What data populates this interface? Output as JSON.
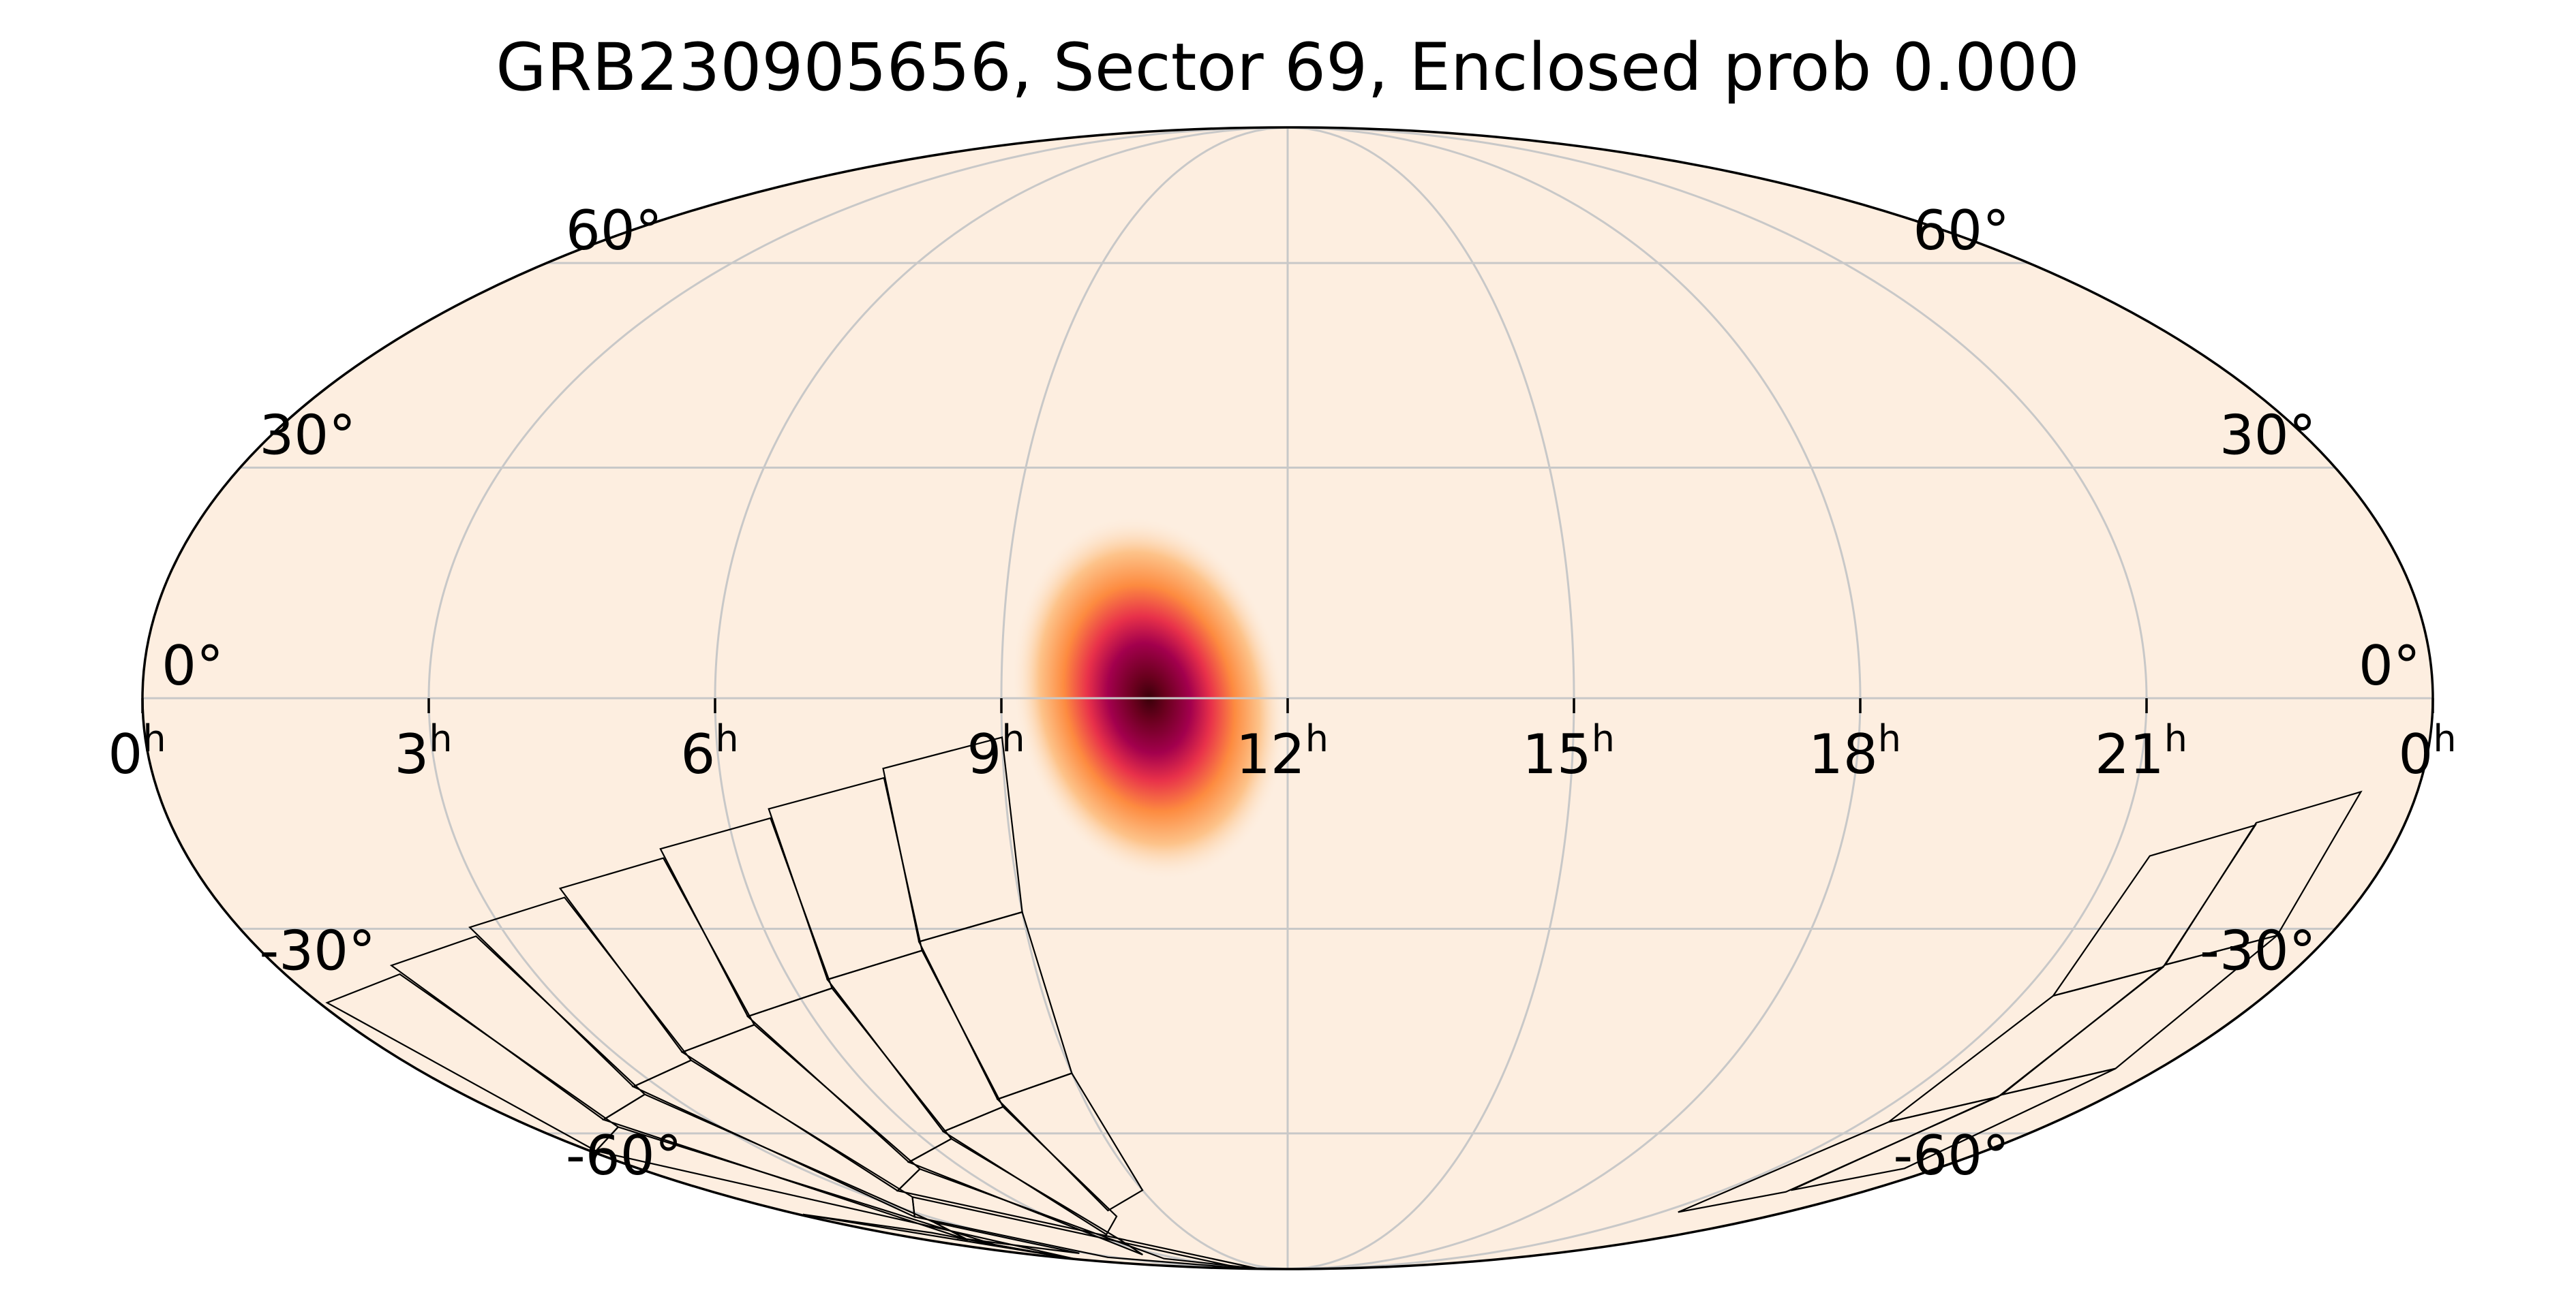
{
  "chart_data": {
    "type": "heatmap",
    "projection": "mollweide",
    "title": "GRB230905656, Sector 69, Enclosed prob 0.000",
    "x_ticks": [
      {
        "ra_hours": 24,
        "label": "0",
        "unit": "h"
      },
      {
        "ra_hours": 21,
        "label": "21",
        "unit": "h"
      },
      {
        "ra_hours": 18,
        "label": "18",
        "unit": "h"
      },
      {
        "ra_hours": 15,
        "label": "15",
        "unit": "h"
      },
      {
        "ra_hours": 12,
        "label": "12",
        "unit": "h"
      },
      {
        "ra_hours": 9,
        "label": "9",
        "unit": "h"
      },
      {
        "ra_hours": 6,
        "label": "6",
        "unit": "h"
      },
      {
        "ra_hours": 3,
        "label": "3",
        "unit": "h"
      },
      {
        "ra_hours": 0,
        "label": "0",
        "unit": "h"
      }
    ],
    "y_ticks": [
      {
        "dec": 60,
        "label": "60°"
      },
      {
        "dec": 30,
        "label": "30°"
      },
      {
        "dec": 0,
        "label": "0°"
      },
      {
        "dec": -30,
        "label": "-30°"
      },
      {
        "dec": -60,
        "label": "-60°"
      }
    ],
    "grid": true,
    "probability_peak": {
      "ra_hours": 10.5,
      "dec": 0
    },
    "probability_extent": {
      "ra_hours_min": 9.5,
      "ra_hours_max": 11.6,
      "dec_min": -18,
      "dec_max": 20
    },
    "colormap": [
      "#fdeee0",
      "#fdc38a",
      "#fd8b40",
      "#e8314a",
      "#a3004d",
      "#3a0009"
    ],
    "sector_footprints": [
      {
        "ra_start": 23.4,
        "ra_end": 21.4,
        "dec_min": -66,
        "dec_max": -12
      },
      {
        "ra_start": 9.0,
        "ra_end": 0.1,
        "dec_min": -70,
        "dec_max": -5
      }
    ]
  }
}
